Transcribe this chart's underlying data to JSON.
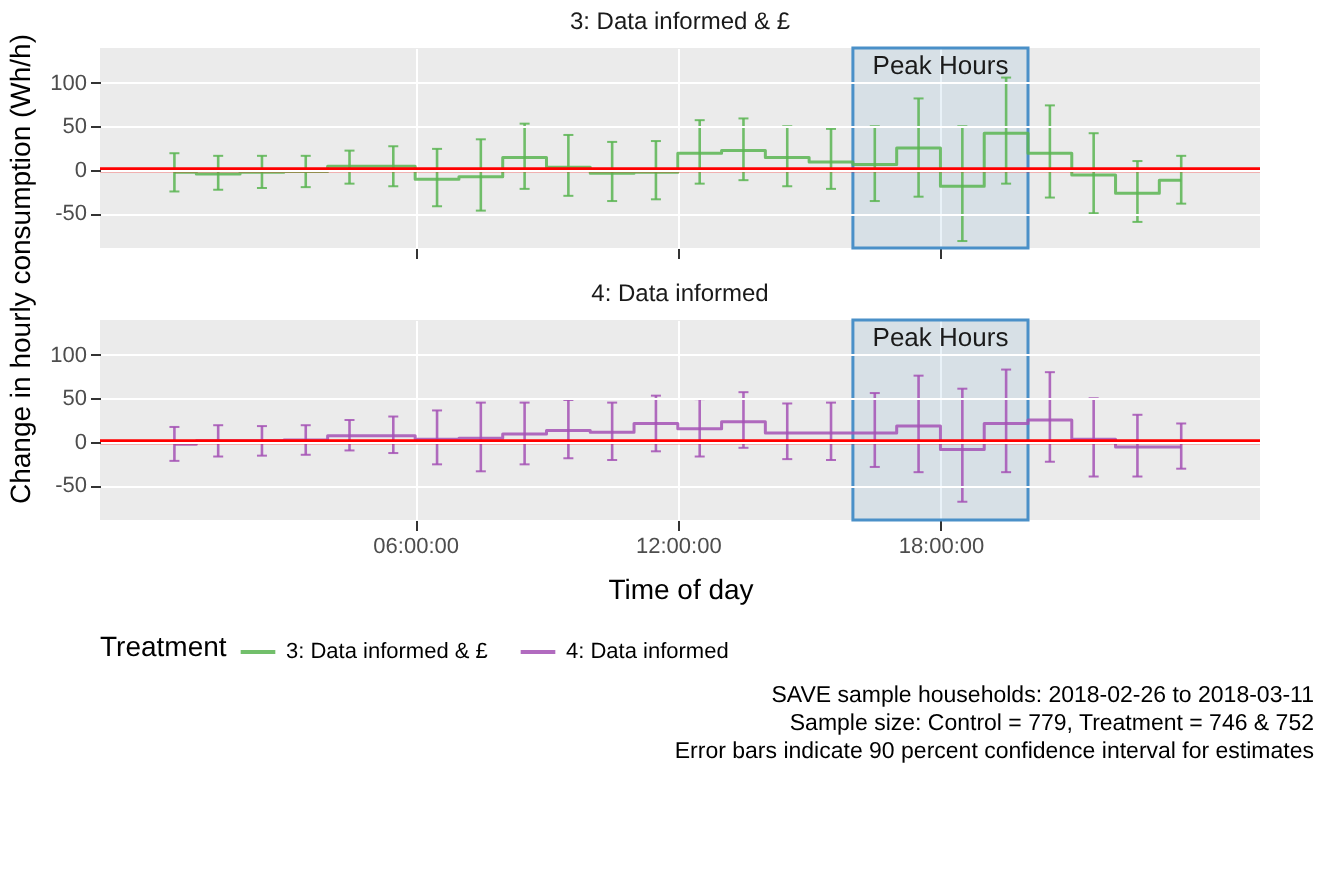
{
  "chart_data": [
    {
      "type": "step",
      "title": "3: Data informed & £",
      "ylabel": "Change in hourly consumption (Wh/h)",
      "x": [
        0.5,
        1.5,
        2.5,
        3.5,
        4.5,
        5.5,
        6.5,
        7.5,
        8.5,
        9.5,
        10.5,
        11.5,
        12.5,
        13.5,
        14.5,
        15.5,
        16.5,
        17.5,
        18.5,
        19.5,
        20.5,
        21.5,
        22.5,
        23.5
      ],
      "series": [
        {
          "name": "3: Data informed & £",
          "color": "#5ab552",
          "values": [
            -3,
            -5,
            -3,
            -2,
            4,
            4,
            -11,
            -8,
            14,
            3,
            -4,
            -3,
            19,
            22,
            14,
            9,
            6,
            25,
            -19,
            42,
            19,
            -6,
            -27,
            -12
          ],
          "errors": [
            [
              -25,
              19
            ],
            [
              -23,
              16
            ],
            [
              -21,
              16
            ],
            [
              -20,
              16
            ],
            [
              -16,
              22
            ],
            [
              -19,
              27
            ],
            [
              -42,
              24
            ],
            [
              -47,
              35
            ],
            [
              -22,
              53
            ],
            [
              -30,
              40
            ],
            [
              -36,
              32
            ],
            [
              -34,
              33
            ],
            [
              -16,
              57
            ],
            [
              -12,
              59
            ],
            [
              -19,
              50
            ],
            [
              -22,
              47
            ],
            [
              -36,
              50
            ],
            [
              -31,
              82
            ],
            [
              -82,
              50
            ],
            [
              -16,
              106
            ],
            [
              -32,
              74
            ],
            [
              -50,
              42
            ],
            [
              -60,
              10
            ],
            [
              -39,
              16
            ]
          ]
        }
      ],
      "xlim": [
        -1.2,
        25.3
      ],
      "ylim": [
        -90,
        140
      ],
      "xticks": [
        {
          "value": 6,
          "label": null
        },
        {
          "value": 12,
          "label": null
        },
        {
          "value": 18,
          "label": null
        }
      ],
      "yticks": [
        -50,
        0,
        50,
        100
      ],
      "ref_lines": [
        {
          "axis": "y",
          "value": 0,
          "color": "#ff0000"
        }
      ],
      "bands": [
        {
          "axis": "x",
          "from": 16,
          "to": 20,
          "label": "Peak Hours",
          "color": "#4a90c8"
        }
      ],
      "grid": true,
      "tick_labels": "y"
    },
    {
      "type": "step",
      "title": "4: Data informed",
      "xlabel": "Time of day",
      "legend_title": "Treatment",
      "legend": "bottom",
      "x": [
        0.5,
        1.5,
        2.5,
        3.5,
        4.5,
        5.5,
        6.5,
        7.5,
        8.5,
        9.5,
        10.5,
        11.5,
        12.5,
        13.5,
        14.5,
        15.5,
        16.5,
        17.5,
        18.5,
        19.5,
        20.5,
        21.5,
        22.5,
        23.5
      ],
      "series": [
        {
          "name": "4: Data informed",
          "color": "#a452b5",
          "values": [
            -3,
            1,
            1,
            2,
            7,
            7,
            3,
            4,
            9,
            13,
            11,
            21,
            15,
            23,
            10,
            10,
            10,
            18,
            -9,
            21,
            25,
            3,
            -6,
            -6
          ],
          "errors": [
            [
              -22,
              17
            ],
            [
              -17,
              19
            ],
            [
              -16,
              18
            ],
            [
              -15,
              19
            ],
            [
              -10,
              25
            ],
            [
              -13,
              29
            ],
            [
              -26,
              36
            ],
            [
              -34,
              45
            ],
            [
              -26,
              45
            ],
            [
              -19,
              48
            ],
            [
              -21,
              45
            ],
            [
              -11,
              53
            ],
            [
              -17,
              49
            ],
            [
              -7,
              57
            ],
            [
              -20,
              44
            ],
            [
              -21,
              45
            ],
            [
              -29,
              56
            ],
            [
              -35,
              76
            ],
            [
              -69,
              61
            ],
            [
              -35,
              83
            ],
            [
              -23,
              80
            ],
            [
              -40,
              50
            ],
            [
              -40,
              31
            ],
            [
              -31,
              21
            ]
          ]
        }
      ],
      "xlim": [
        -1.2,
        25.3
      ],
      "ylim": [
        -90,
        140
      ],
      "xticks": [
        {
          "value": 6,
          "label": "06:00:00"
        },
        {
          "value": 12,
          "label": "12:00:00"
        },
        {
          "value": 18,
          "label": "18:00:00"
        }
      ],
      "yticks": [
        -50,
        0,
        50,
        100
      ],
      "ref_lines": [
        {
          "axis": "y",
          "value": 0,
          "color": "#ff0000"
        }
      ],
      "bands": [
        {
          "axis": "x",
          "from": 16,
          "to": 20,
          "label": "Peak Hours",
          "color": "#4a90c8"
        }
      ],
      "grid": true,
      "annotations": [
        "SAVE sample households: 2018-02-26 to 2018-03-11",
        "Sample size: Control = 779, Treatment = 746 & 752",
        "Error bars indicate 90 percent confidence interval for estimates"
      ]
    }
  ]
}
